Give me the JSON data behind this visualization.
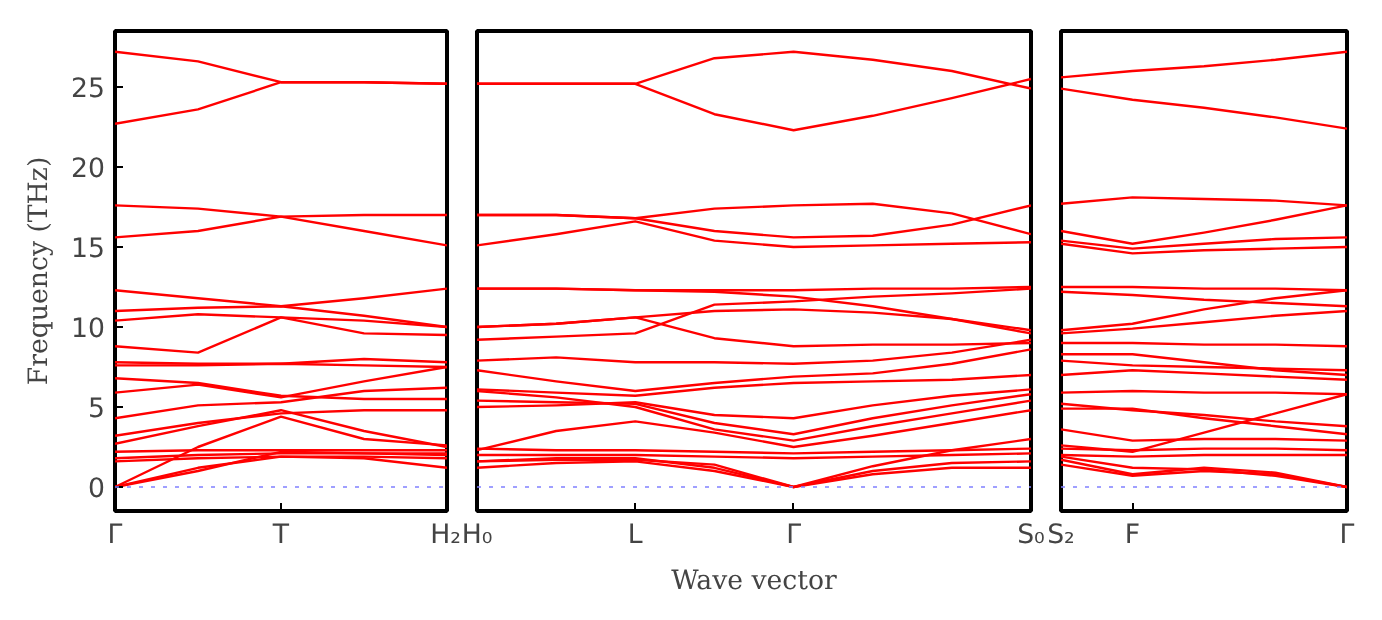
{
  "chart_data": [
    {
      "type": "line",
      "ylabel": "Frequency (THz)",
      "categories": [
        "Γ",
        null,
        "T",
        null,
        "H₂"
      ],
      "ylim": [
        -1.5,
        28.5
      ],
      "yticks": [
        0,
        5,
        10,
        15,
        20,
        25
      ],
      "grid": false,
      "marker": "none",
      "line_style": "solid",
      "ref_lines": [
        {
          "axis": "y",
          "value": 0,
          "color": "#8080ff",
          "line_style": "dotted"
        }
      ],
      "series": [
        {
          "color": "#ff0000",
          "values": [
            27.2,
            26.6,
            25.3,
            25.3,
            25.2
          ]
        },
        {
          "color": "#ff0000",
          "values": [
            22.7,
            23.6,
            25.3,
            25.3,
            25.2
          ]
        },
        {
          "color": "#ff0000",
          "values": [
            17.6,
            17.4,
            16.9,
            16.0,
            15.1
          ]
        },
        {
          "color": "#ff0000",
          "values": [
            15.6,
            16.0,
            16.9,
            17.0,
            17.0
          ]
        },
        {
          "color": "#ff0000",
          "values": [
            12.3,
            11.8,
            11.3,
            11.8,
            12.4
          ]
        },
        {
          "color": "#ff0000",
          "values": [
            11.0,
            11.2,
            11.3,
            10.7,
            10.0
          ]
        },
        {
          "color": "#ff0000",
          "values": [
            10.4,
            10.8,
            10.6,
            9.6,
            9.5
          ]
        },
        {
          "color": "#ff0000",
          "values": [
            8.8,
            8.4,
            10.6,
            10.4,
            10.0
          ]
        },
        {
          "color": "#ff0000",
          "values": [
            7.8,
            7.7,
            7.7,
            8.0,
            7.8
          ]
        },
        {
          "color": "#ff0000",
          "values": [
            7.6,
            7.6,
            7.7,
            7.6,
            7.5
          ]
        },
        {
          "color": "#ff0000",
          "values": [
            6.8,
            6.5,
            5.7,
            5.5,
            5.5
          ]
        },
        {
          "color": "#ff0000",
          "values": [
            5.9,
            6.4,
            5.6,
            6.6,
            7.5
          ]
        },
        {
          "color": "#ff0000",
          "values": [
            4.3,
            5.1,
            5.3,
            6.0,
            6.2
          ]
        },
        {
          "color": "#ff0000",
          "values": [
            3.2,
            4.0,
            4.6,
            4.8,
            4.8
          ]
        },
        {
          "color": "#ff0000",
          "values": [
            2.7,
            3.8,
            4.8,
            3.5,
            2.5
          ]
        },
        {
          "color": "#ff0000",
          "values": [
            2.2,
            2.3,
            2.3,
            2.3,
            2.3
          ]
        },
        {
          "color": "#ff0000",
          "values": [
            1.8,
            2.0,
            2.1,
            2.1,
            2.1
          ]
        },
        {
          "color": "#ff0000",
          "values": [
            1.6,
            1.8,
            1.9,
            1.9,
            1.8
          ]
        },
        {
          "color": "#ff0000",
          "values": [
            0,
            1.2,
            1.9,
            1.8,
            1.2
          ]
        },
        {
          "color": "#ff0000",
          "values": [
            0,
            1.0,
            2.2,
            2.1,
            2.0
          ]
        },
        {
          "color": "#ff0000",
          "values": [
            0,
            2.5,
            4.4,
            3.0,
            2.6
          ]
        }
      ]
    },
    {
      "type": "line",
      "xlabel": "Wave vector",
      "tick_labels": "x",
      "categories": [
        "H₀",
        null,
        "L",
        null,
        "Γ",
        null,
        null,
        "S₀"
      ],
      "ylim": [
        -1.5,
        28.5
      ],
      "grid": false,
      "marker": "none",
      "line_style": "solid",
      "ref_lines": [
        {
          "axis": "y",
          "value": 0,
          "color": "#8080ff",
          "line_style": "dotted"
        }
      ],
      "series": [
        {
          "color": "#ff0000",
          "values": [
            25.2,
            25.2,
            25.2,
            26.8,
            27.2,
            26.7,
            26.0,
            24.9
          ]
        },
        {
          "color": "#ff0000",
          "values": [
            25.2,
            25.2,
            25.2,
            23.3,
            22.3,
            23.2,
            24.3,
            25.5
          ]
        },
        {
          "color": "#ff0000",
          "values": [
            17.0,
            17.0,
            16.8,
            17.4,
            17.6,
            17.7,
            17.1,
            15.8
          ]
        },
        {
          "color": "#ff0000",
          "values": [
            17.0,
            17.0,
            16.8,
            16.0,
            15.6,
            15.7,
            16.4,
            17.6
          ]
        },
        {
          "color": "#ff0000",
          "values": [
            15.1,
            15.8,
            16.6,
            15.4,
            15.0,
            15.1,
            15.2,
            15.3
          ]
        },
        {
          "color": "#ff0000",
          "values": [
            12.4,
            12.4,
            12.3,
            12.3,
            12.3,
            12.4,
            12.4,
            12.5
          ]
        },
        {
          "color": "#ff0000",
          "values": [
            12.4,
            12.4,
            12.3,
            12.2,
            11.9,
            11.3,
            10.5,
            9.6
          ]
        },
        {
          "color": "#ff0000",
          "values": [
            10.0,
            10.2,
            10.6,
            11.0,
            11.1,
            10.9,
            10.5,
            9.8
          ]
        },
        {
          "color": "#ff0000",
          "values": [
            9.2,
            9.4,
            9.6,
            11.4,
            11.6,
            11.9,
            12.1,
            12.4
          ]
        },
        {
          "color": "#ff0000",
          "values": [
            10.0,
            10.2,
            10.6,
            9.3,
            8.8,
            8.9,
            8.9,
            9.0
          ]
        },
        {
          "color": "#ff0000",
          "values": [
            7.9,
            8.1,
            7.8,
            7.8,
            7.7,
            7.9,
            8.4,
            9.2
          ]
        },
        {
          "color": "#ff0000",
          "values": [
            7.3,
            6.6,
            6.0,
            6.5,
            6.9,
            7.1,
            7.7,
            8.6
          ]
        },
        {
          "color": "#ff0000",
          "values": [
            6.1,
            5.9,
            5.7,
            6.2,
            6.5,
            6.6,
            6.7,
            7.0
          ]
        },
        {
          "color": "#ff0000",
          "values": [
            5.0,
            5.1,
            5.3,
            4.5,
            4.3,
            5.1,
            5.7,
            6.1
          ]
        },
        {
          "color": "#ff0000",
          "values": [
            5.4,
            5.3,
            5.2,
            4.0,
            3.3,
            4.3,
            5.1,
            5.8
          ]
        },
        {
          "color": "#ff0000",
          "values": [
            6.0,
            5.6,
            5.0,
            3.6,
            2.9,
            3.8,
            4.6,
            5.4
          ]
        },
        {
          "color": "#ff0000",
          "values": [
            2.3,
            3.5,
            4.1,
            3.4,
            2.5,
            3.2,
            4.0,
            4.8
          ]
        },
        {
          "color": "#ff0000",
          "values": [
            2.4,
            2.3,
            2.3,
            2.2,
            2.1,
            2.2,
            2.3,
            2.4
          ]
        },
        {
          "color": "#ff0000",
          "values": [
            2.0,
            2.0,
            2.0,
            1.9,
            1.8,
            1.9,
            2.0,
            2.1
          ]
        },
        {
          "color": "#ff0000",
          "values": [
            1.6,
            1.8,
            1.8,
            1.2,
            0,
            1.0,
            1.5,
            1.6
          ]
        },
        {
          "color": "#ff0000",
          "values": [
            1.2,
            1.5,
            1.6,
            1.0,
            0,
            0.8,
            1.2,
            1.2
          ]
        },
        {
          "color": "#ff0000",
          "values": [
            1.6,
            1.7,
            1.7,
            1.4,
            0,
            1.3,
            2.3,
            3.0
          ]
        }
      ]
    },
    {
      "type": "line",
      "tick_labels": "x",
      "categories": [
        "S₂",
        "F",
        null,
        null,
        "Γ"
      ],
      "ylim": [
        -1.5,
        28.5
      ],
      "grid": false,
      "marker": "none",
      "line_style": "solid",
      "ref_lines": [
        {
          "axis": "y",
          "value": 0,
          "color": "#8080ff",
          "line_style": "dotted"
        }
      ],
      "series": [
        {
          "color": "#ff0000",
          "values": [
            25.6,
            26.0,
            26.3,
            26.7,
            27.2
          ]
        },
        {
          "color": "#ff0000",
          "values": [
            24.9,
            24.2,
            23.7,
            23.1,
            22.4
          ]
        },
        {
          "color": "#ff0000",
          "values": [
            17.7,
            18.1,
            18.0,
            17.9,
            17.6
          ]
        },
        {
          "color": "#ff0000",
          "values": [
            16.0,
            15.2,
            15.9,
            16.7,
            17.6
          ]
        },
        {
          "color": "#ff0000",
          "values": [
            15.4,
            14.9,
            15.2,
            15.5,
            15.6
          ]
        },
        {
          "color": "#ff0000",
          "values": [
            15.2,
            14.6,
            14.8,
            14.9,
            15.0
          ]
        },
        {
          "color": "#ff0000",
          "values": [
            12.5,
            12.5,
            12.4,
            12.4,
            12.3
          ]
        },
        {
          "color": "#ff0000",
          "values": [
            12.2,
            12.0,
            11.7,
            11.5,
            11.3
          ]
        },
        {
          "color": "#ff0000",
          "values": [
            9.8,
            10.2,
            11.1,
            11.8,
            12.3
          ]
        },
        {
          "color": "#ff0000",
          "values": [
            9.6,
            9.9,
            10.3,
            10.7,
            11.0
          ]
        },
        {
          "color": "#ff0000",
          "values": [
            9.0,
            9.0,
            8.9,
            8.9,
            8.8
          ]
        },
        {
          "color": "#ff0000",
          "values": [
            8.3,
            8.3,
            7.8,
            7.3,
            7.0
          ]
        },
        {
          "color": "#ff0000",
          "values": [
            7.9,
            7.6,
            7.5,
            7.4,
            7.3
          ]
        },
        {
          "color": "#ff0000",
          "values": [
            7.0,
            7.3,
            7.1,
            6.9,
            6.7
          ]
        },
        {
          "color": "#ff0000",
          "values": [
            5.9,
            6.0,
            5.9,
            5.9,
            5.8
          ]
        },
        {
          "color": "#ff0000",
          "values": [
            5.2,
            4.8,
            4.5,
            4.1,
            3.8
          ]
        },
        {
          "color": "#ff0000",
          "values": [
            4.9,
            4.9,
            4.3,
            3.8,
            3.3
          ]
        },
        {
          "color": "#ff0000",
          "values": [
            3.6,
            2.9,
            3.0,
            3.0,
            2.9
          ]
        },
        {
          "color": "#ff0000",
          "values": [
            2.6,
            2.2,
            3.4,
            4.6,
            5.8
          ]
        },
        {
          "color": "#ff0000",
          "values": [
            2.4,
            2.3,
            2.4,
            2.4,
            2.3
          ]
        },
        {
          "color": "#ff0000",
          "values": [
            2.0,
            1.9,
            2.0,
            2.0,
            2.0
          ]
        },
        {
          "color": "#ff0000",
          "values": [
            1.4,
            0.7,
            1.0,
            0.8,
            0
          ]
        },
        {
          "color": "#ff0000",
          "values": [
            1.7,
            0.8,
            1.2,
            0.9,
            0
          ]
        },
        {
          "color": "#ff0000",
          "values": [
            1.9,
            1.2,
            1.1,
            0.7,
            0
          ]
        }
      ]
    }
  ]
}
